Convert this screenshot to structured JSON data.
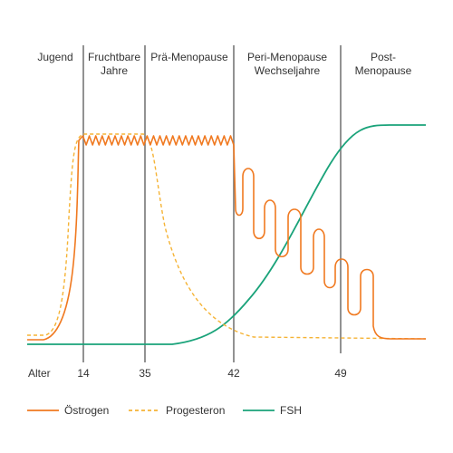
{
  "chart_data": {
    "type": "line",
    "x_label": "Alter",
    "x_ticks": [
      14,
      35,
      42,
      49
    ],
    "phases": [
      {
        "lines": [
          "Jugend"
        ],
        "from": 5,
        "to": 14
      },
      {
        "lines": [
          "Fruchtbare",
          "Jahre"
        ],
        "from": 14,
        "to": 35
      },
      {
        "lines": [
          "Prä-Menopause"
        ],
        "from": 35,
        "to": 42
      },
      {
        "lines": [
          "Peri-Menopause",
          "Wechseljahre"
        ],
        "from": 42,
        "to": 49
      },
      {
        "lines": [
          "Post-",
          "Menopause"
        ],
        "from": 49,
        "to": 56
      }
    ],
    "series": [
      {
        "name": "Östrogen",
        "color": "#f07920",
        "style": "solid"
      },
      {
        "name": "Progesteron",
        "color": "#f5b335",
        "style": "dashed"
      },
      {
        "name": "FSH",
        "color": "#1aa37a",
        "style": "solid"
      }
    ],
    "legend_position": "bottom",
    "grid": false
  }
}
